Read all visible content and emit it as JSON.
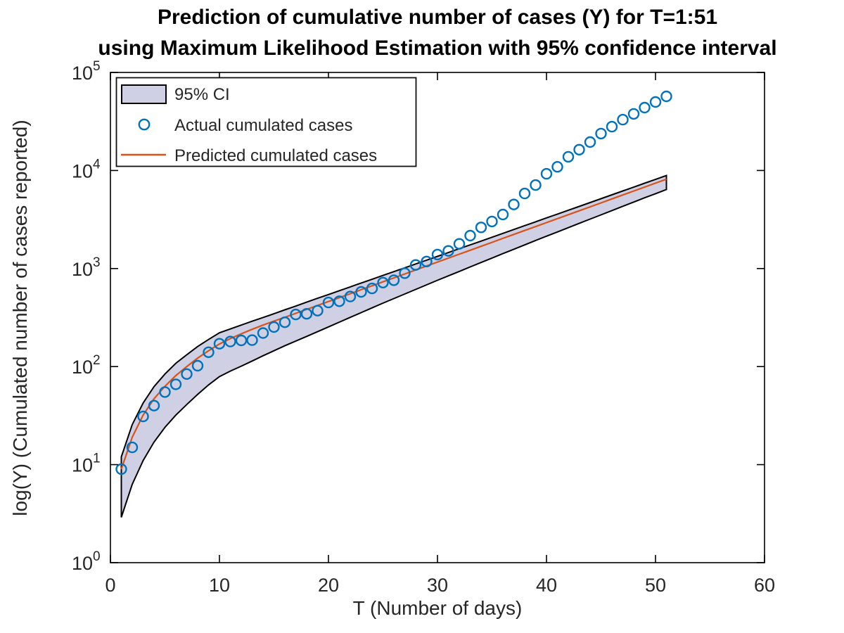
{
  "chart_data": {
    "type": "line",
    "title": "Prediction of cumulative number of cases (Y) for T=1:51 using Maximum Likelihood Estimation with 95% confidence interval",
    "title_lines": [
      "Prediction of cumulative number of cases (Y) for T=1:51",
      "using Maximum Likelihood Estimation with 95% confidence interval"
    ],
    "xlabel": "T (Number of days)",
    "ylabel": "log(Y) (Cumulated number of cases reported)",
    "x_ticks": [
      0,
      10,
      20,
      30,
      40,
      50,
      60
    ],
    "y_tick_base": "10",
    "y_tick_exponents": [
      0,
      1,
      2,
      3,
      4,
      5
    ],
    "xlim": [
      0,
      60
    ],
    "ylim_log10": [
      0,
      5
    ],
    "y_scale": "log",
    "grid": false,
    "legend_position": "top-left",
    "x": [
      1,
      2,
      3,
      4,
      5,
      6,
      7,
      8,
      9,
      10,
      11,
      12,
      13,
      14,
      15,
      16,
      17,
      18,
      19,
      20,
      21,
      22,
      23,
      24,
      25,
      26,
      27,
      28,
      29,
      30,
      31,
      32,
      33,
      34,
      35,
      36,
      37,
      38,
      39,
      40,
      41,
      42,
      43,
      44,
      45,
      46,
      47,
      48,
      49,
      50,
      51
    ],
    "series": [
      {
        "name": "95% CI",
        "type": "band",
        "upper": [
          12,
          25.6,
          42.5,
          62.5,
          84,
          108,
          132,
          160,
          189,
          221,
          242,
          265,
          290,
          317,
          346,
          379,
          414,
          454,
          497,
          543,
          594,
          650,
          711,
          777,
          850,
          930,
          1017,
          1113,
          1217,
          1330,
          1455,
          1592,
          1742,
          1906,
          2086,
          2285,
          2503,
          2738,
          2996,
          3284,
          3593,
          3931,
          4300,
          4707,
          5160,
          5649,
          6182,
          6765,
          7410,
          8110,
          8900
        ],
        "lower": [
          2.9,
          6.3,
          11,
          17,
          24,
          32,
          41,
          52,
          65,
          79,
          90,
          101,
          114,
          129,
          145,
          163,
          182,
          203,
          227,
          254,
          284,
          318,
          355,
          397,
          444,
          494,
          550,
          612,
          682,
          759,
          842,
          935,
          1039,
          1153,
          1280,
          1419,
          1573,
          1742,
          1932,
          2138,
          2362,
          2612,
          2889,
          3192,
          3528,
          3899,
          4311,
          4764,
          5266,
          5799,
          6400
        ]
      },
      {
        "name": "Actual cumulated cases",
        "type": "scatter",
        "marker": "circle",
        "values": [
          9,
          15,
          31,
          40,
          55,
          66,
          84,
          102,
          140,
          171,
          180,
          185,
          186,
          220,
          253,
          283,
          340,
          345,
          372,
          450,
          464,
          518,
          578,
          627,
          719,
          760,
          897,
          1087,
          1180,
          1390,
          1514,
          1786,
          2168,
          2630,
          3020,
          3556,
          4500,
          5830,
          7100,
          9260,
          10900,
          13800,
          16300,
          19500,
          23800,
          28000,
          33000,
          37800,
          43800,
          50000,
          57000
        ]
      },
      {
        "name": "Predicted cumulated cases",
        "type": "line",
        "values": [
          9,
          19,
          32,
          47,
          63,
          81,
          100,
          122,
          145,
          170,
          193,
          216,
          240,
          265,
          291,
          318,
          349,
          383,
          420,
          461,
          505,
          554,
          608,
          667,
          732,
          803,
          881,
          967,
          1061,
          1164,
          1277,
          1401,
          1537,
          1686,
          1850,
          2030,
          2227,
          2443,
          2680,
          2940,
          3226,
          3539,
          3883,
          4260,
          4673,
          5127,
          5625,
          6171,
          6770,
          7427,
          8148
        ]
      }
    ]
  },
  "colors": {
    "background": "#ffffff",
    "band_fill": "#d0d0e4",
    "band_edge": "#000000",
    "actual": "#0072BD",
    "predicted": "#D95319",
    "axis": "#000000",
    "tick_text": "#262626",
    "title_text": "#000000",
    "legend_border": "#0f0f0f",
    "legend_bg": "#ffffff"
  }
}
